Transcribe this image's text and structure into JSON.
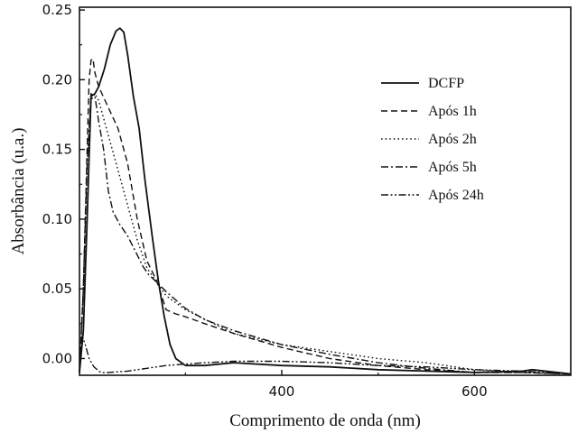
{
  "chart_data": {
    "type": "line",
    "xlabel": "Comprimento de onda (nm)",
    "ylabel": "Absorbância (u.a.)",
    "xlim": [
      190,
      700
    ],
    "ylim": [
      -0.012,
      0.252
    ],
    "x_ticks": [
      400,
      600
    ],
    "x_tick_labels": [
      "400",
      "600"
    ],
    "y_ticks": [
      0.0,
      0.05,
      0.1,
      0.15,
      0.2,
      0.25
    ],
    "y_tick_labels": [
      "0.00",
      "0.05",
      "0.10",
      "0.15",
      "0.20",
      "0.25"
    ],
    "grid": false,
    "legend_position": "top-right",
    "series": [
      {
        "name": "DCFP",
        "dash": "solid",
        "points": [
          [
            190,
            -0.01
          ],
          [
            194,
            0.02
          ],
          [
            198,
            0.1
          ],
          [
            202,
            0.188
          ],
          [
            206,
            0.19
          ],
          [
            210,
            0.195
          ],
          [
            216,
            0.208
          ],
          [
            222,
            0.225
          ],
          [
            228,
            0.235
          ],
          [
            232,
            0.237
          ],
          [
            236,
            0.234
          ],
          [
            240,
            0.218
          ],
          [
            246,
            0.188
          ],
          [
            252,
            0.165
          ],
          [
            258,
            0.128
          ],
          [
            266,
            0.085
          ],
          [
            272,
            0.055
          ],
          [
            278,
            0.03
          ],
          [
            284,
            0.01
          ],
          [
            290,
            0.0
          ],
          [
            300,
            -0.005
          ],
          [
            320,
            -0.005
          ],
          [
            350,
            -0.003
          ],
          [
            400,
            -0.005
          ],
          [
            450,
            -0.006
          ],
          [
            500,
            -0.008
          ],
          [
            550,
            -0.009
          ],
          [
            600,
            -0.01
          ],
          [
            650,
            -0.009
          ],
          [
            660,
            -0.008
          ],
          [
            700,
            -0.011
          ]
        ]
      },
      {
        "name": "Após 1h",
        "dash": "dashed",
        "points": [
          [
            190,
            -0.01
          ],
          [
            194,
            0.05
          ],
          [
            198,
            0.15
          ],
          [
            200,
            0.2
          ],
          [
            202,
            0.214
          ],
          [
            204,
            0.215
          ],
          [
            206,
            0.205
          ],
          [
            210,
            0.195
          ],
          [
            220,
            0.18
          ],
          [
            230,
            0.165
          ],
          [
            240,
            0.14
          ],
          [
            250,
            0.1
          ],
          [
            260,
            0.07
          ],
          [
            270,
            0.056
          ],
          [
            280,
            0.035
          ],
          [
            290,
            0.032
          ],
          [
            300,
            0.03
          ],
          [
            320,
            0.025
          ],
          [
            350,
            0.018
          ],
          [
            400,
            0.008
          ],
          [
            450,
            0.0
          ],
          [
            500,
            -0.005
          ],
          [
            550,
            -0.008
          ],
          [
            600,
            -0.01
          ],
          [
            650,
            -0.01
          ],
          [
            700,
            -0.011
          ]
        ]
      },
      {
        "name": "Após 2h",
        "dash": "dotted",
        "points": [
          [
            190,
            -0.01
          ],
          [
            194,
            0.05
          ],
          [
            198,
            0.14
          ],
          [
            202,
            0.185
          ],
          [
            206,
            0.19
          ],
          [
            210,
            0.185
          ],
          [
            220,
            0.16
          ],
          [
            230,
            0.135
          ],
          [
            240,
            0.11
          ],
          [
            250,
            0.085
          ],
          [
            260,
            0.065
          ],
          [
            270,
            0.055
          ],
          [
            280,
            0.045
          ],
          [
            300,
            0.035
          ],
          [
            350,
            0.018
          ],
          [
            400,
            0.01
          ],
          [
            450,
            0.005
          ],
          [
            500,
            0.0
          ],
          [
            550,
            -0.003
          ],
          [
            600,
            -0.008
          ],
          [
            650,
            -0.01
          ],
          [
            700,
            -0.011
          ]
        ]
      },
      {
        "name": "Após 5h",
        "dash": "dash-dot",
        "points": [
          [
            190,
            -0.01
          ],
          [
            194,
            0.05
          ],
          [
            198,
            0.14
          ],
          [
            202,
            0.19
          ],
          [
            206,
            0.188
          ],
          [
            210,
            0.17
          ],
          [
            215,
            0.15
          ],
          [
            220,
            0.12
          ],
          [
            225,
            0.105
          ],
          [
            232,
            0.096
          ],
          [
            240,
            0.088
          ],
          [
            248,
            0.077
          ],
          [
            256,
            0.066
          ],
          [
            262,
            0.06
          ],
          [
            270,
            0.055
          ],
          [
            280,
            0.048
          ],
          [
            300,
            0.036
          ],
          [
            320,
            0.028
          ],
          [
            350,
            0.02
          ],
          [
            400,
            0.01
          ],
          [
            450,
            0.003
          ],
          [
            500,
            -0.003
          ],
          [
            550,
            -0.007
          ],
          [
            600,
            -0.01
          ],
          [
            650,
            -0.01
          ],
          [
            700,
            -0.011
          ]
        ]
      },
      {
        "name": "Após 24h",
        "dash": "dash-dot-dot",
        "points": [
          [
            190,
            0.0
          ],
          [
            193,
            0.016
          ],
          [
            196,
            0.01
          ],
          [
            200,
            0.0
          ],
          [
            205,
            -0.006
          ],
          [
            212,
            -0.01
          ],
          [
            220,
            -0.01
          ],
          [
            240,
            -0.009
          ],
          [
            260,
            -0.007
          ],
          [
            280,
            -0.005
          ],
          [
            300,
            -0.004
          ],
          [
            320,
            -0.003
          ],
          [
            350,
            -0.002
          ],
          [
            380,
            -0.002
          ],
          [
            400,
            -0.002
          ],
          [
            450,
            -0.003
          ],
          [
            500,
            -0.005
          ],
          [
            550,
            -0.006
          ],
          [
            600,
            -0.008
          ],
          [
            650,
            -0.009
          ],
          [
            700,
            -0.011
          ]
        ]
      }
    ]
  }
}
